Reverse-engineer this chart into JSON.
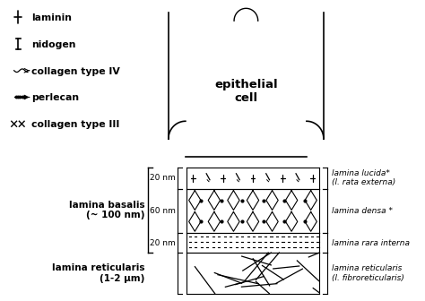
{
  "bg_color": "#ffffff",
  "line_color": "#000000",
  "cell_label": "epithelial\ncell",
  "legend_labels": [
    "laminin",
    "nidogen",
    "collagen type IV",
    "perlecan",
    "collagen type III"
  ],
  "thickness_labels": [
    "20 nm",
    "60 nm",
    "20 nm"
  ],
  "right_labels": [
    "lamina lucida*\n(l. rata externa)",
    "lamina densa *",
    "lamina rara interna",
    "lamina reticularis\n(l. fibroreticularis)"
  ],
  "basalis_label": "lamina basalis\n(~ 100 nm)",
  "reticularis_label": "lamina reticularis\n(1-2 μm)"
}
